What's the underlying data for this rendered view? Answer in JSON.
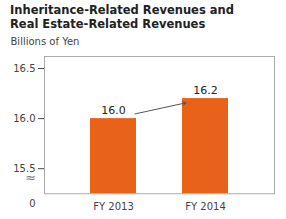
{
  "chart_data": {
    "type": "bar",
    "title": "Inheritance-Related Revenues and\nReal Estate-Related Revenues",
    "ylabel": "Billions of Yen",
    "categories": [
      "FY 2013",
      "FY 2014"
    ],
    "values": [
      16.0,
      16.2
    ],
    "value_labels": [
      "16.0",
      "16.2"
    ],
    "data_labels": true,
    "color": "#e8621a",
    "ylim": [
      15.25,
      16.62
    ],
    "yticks": [
      15.5,
      {
        "value": 16.0,
        "label": "16.0"
      },
      16.5
    ],
    "annotations": [
      "≈",
      "0"
    ],
    "grid": false
  }
}
